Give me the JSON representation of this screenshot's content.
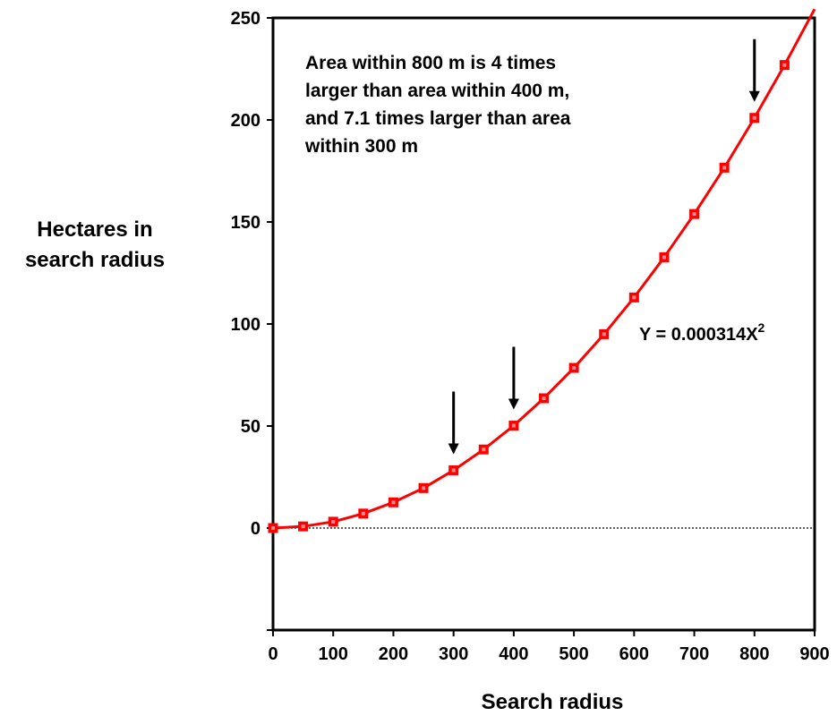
{
  "chart_data": {
    "type": "line",
    "xlabel": "Search radius",
    "ylabel_lines": [
      "Hectares in",
      "search radius"
    ],
    "xlim": [
      0,
      900
    ],
    "ylim": [
      -50,
      250
    ],
    "x_ticks": [
      0,
      100,
      200,
      300,
      400,
      500,
      600,
      700,
      800,
      900
    ],
    "y_ticks": [
      0,
      50,
      100,
      150,
      200,
      250
    ],
    "grid": false,
    "zero_line": "dotted",
    "series": [
      {
        "color": "#ff0000",
        "marker": "square",
        "x": [
          0,
          50,
          100,
          150,
          200,
          250,
          300,
          350,
          400,
          450,
          500,
          550,
          600,
          650,
          700,
          750,
          800,
          850,
          900
        ],
        "y": [
          0,
          0.8,
          3.1,
          7.1,
          12.6,
          19.6,
          28.3,
          38.5,
          50.2,
          63.6,
          78.5,
          95.0,
          113.0,
          132.7,
          153.9,
          176.6,
          201.0,
          226.9,
          254.3
        ],
        "marker_x": [
          0,
          50,
          100,
          150,
          200,
          250,
          300,
          350,
          400,
          450,
          500,
          550,
          600,
          650,
          700,
          750,
          800,
          850
        ]
      }
    ],
    "annotations": {
      "note_lines": [
        "Area within 800 m is 4 times",
        "larger than area within 400 m,",
        "and 7.1 times larger than area",
        "within 300 m"
      ],
      "equation_main": "Y = 0.000314X",
      "equation_sup": "2",
      "arrows_at_x": [
        300,
        400,
        800
      ]
    }
  }
}
